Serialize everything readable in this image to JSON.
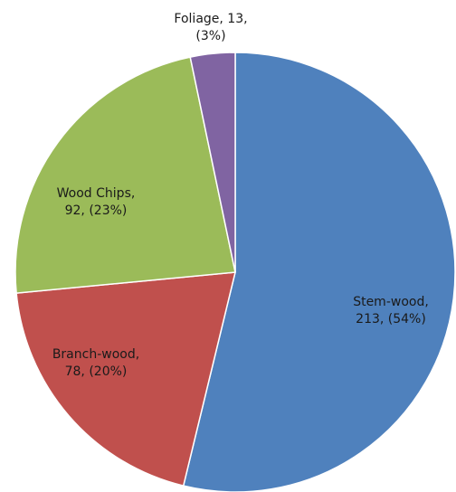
{
  "chart_data": {
    "type": "pie",
    "title": "",
    "start_angle_deg": 0,
    "direction": "clockwise",
    "slices": [
      {
        "category": "Stem-wood",
        "value": 213,
        "percent": "54%",
        "color": "#4F81BD",
        "label_lines": [
          "Stem-wood,",
          "213, (54%)"
        ]
      },
      {
        "category": "Branch-wood",
        "value": 78,
        "percent": "20%",
        "color": "#C0504D",
        "label_lines": [
          "Branch-wood,",
          "78, (20%)"
        ]
      },
      {
        "category": "Wood Chips",
        "value": 92,
        "percent": "23%",
        "color": "#9BBB59",
        "label_lines": [
          "Wood Chips,",
          "92, (23%)"
        ]
      },
      {
        "category": "Foliage",
        "value": 13,
        "percent": "3%",
        "color": "#8064A2",
        "label_lines": [
          "Foliage, 13,",
          "(3%)"
        ]
      }
    ]
  }
}
